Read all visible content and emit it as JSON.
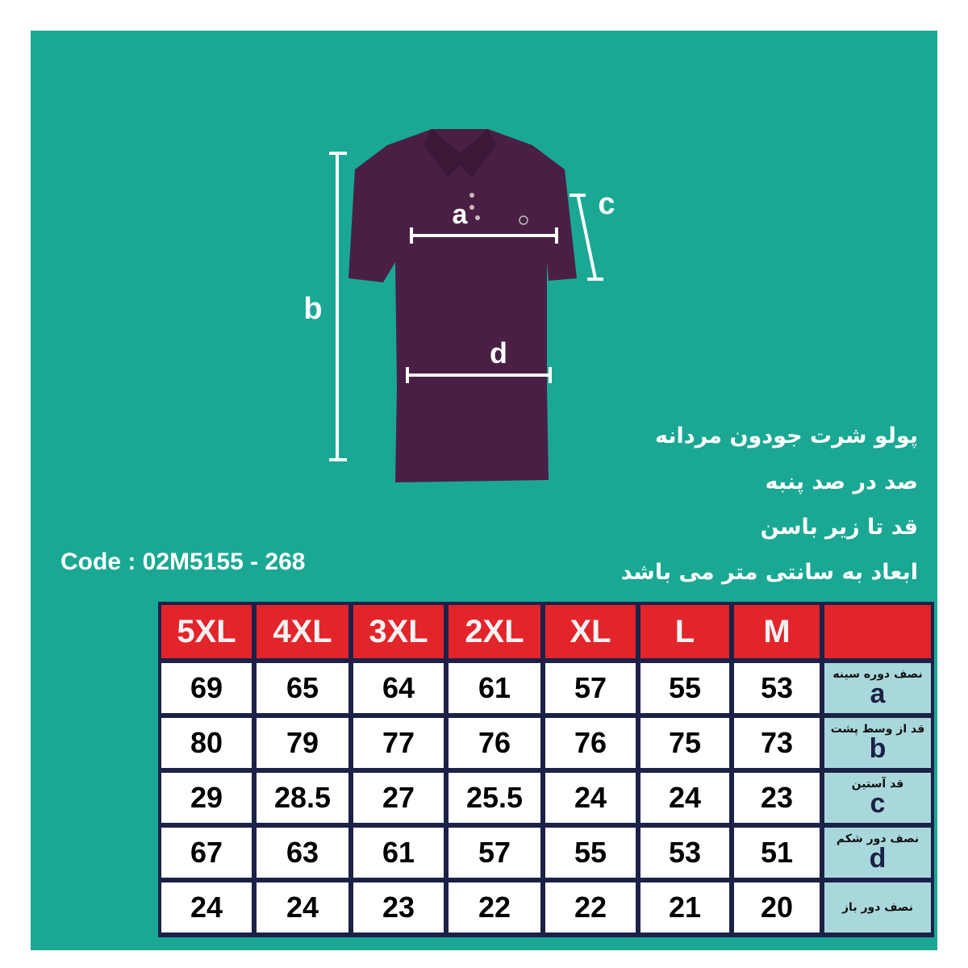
{
  "info_lines": [
    "پولو شرت جودون مردانه",
    "صد در صد پنبه",
    "قد تا زیر باسن",
    "ابعاد به سانتی متر می باشد"
  ],
  "code": "Code : 02M5155 - 268",
  "diagram_labels": {
    "a": "a",
    "b": "b",
    "c": "c",
    "d": "d"
  },
  "colors": {
    "background": "#1aa894",
    "shirt": "#4a1f45",
    "header": "#e3242b",
    "border": "#1c2147",
    "label_cell": "#a9d8dc"
  },
  "table": {
    "sizes": [
      "5XL",
      "4XL",
      "3XL",
      "2XL",
      "XL",
      "L",
      "M"
    ],
    "rows": [
      {
        "label": "نصف دوره سینه",
        "letter": "a",
        "values": [
          "69",
          "65",
          "64",
          "61",
          "57",
          "55",
          "53"
        ]
      },
      {
        "label": "قد از وسط پشت",
        "letter": "b",
        "values": [
          "80",
          "79",
          "77",
          "76",
          "76",
          "75",
          "73"
        ]
      },
      {
        "label": "قد آستین",
        "letter": "c",
        "values": [
          "29",
          "28.5",
          "27",
          "25.5",
          "24",
          "24",
          "23"
        ]
      },
      {
        "label": "نصف دور شکم",
        "letter": "d",
        "values": [
          "67",
          "63",
          "61",
          "57",
          "55",
          "53",
          "51"
        ]
      },
      {
        "label": "نصف دور باز",
        "letter": "",
        "values": [
          "24",
          "24",
          "23",
          "22",
          "22",
          "21",
          "20"
        ]
      }
    ]
  }
}
